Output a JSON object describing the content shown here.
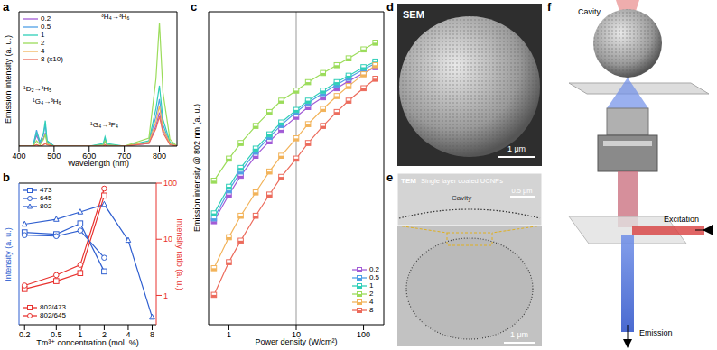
{
  "chart_data": [
    {
      "panel": "a",
      "type": "line",
      "x_label": "Wavelength (nm)",
      "y_label": "Emission intensity (a. u.)",
      "x": [
        400,
        440,
        450,
        460,
        470,
        475,
        480,
        500,
        600,
        640,
        645,
        650,
        700,
        770,
        790,
        800,
        810,
        830,
        850
      ],
      "xlim": [
        400,
        850
      ],
      "xticks": [
        400,
        500,
        600,
        700,
        800
      ],
      "ylim": [
        0,
        10
      ],
      "tick_labels": "x",
      "legend": "upper left",
      "annotations": [
        "³H₄→³H₆",
        "¹D₂→³H₅",
        "¹G₄→³H₆",
        "¹G₄→³F₄"
      ],
      "series": [
        {
          "name": "0.2",
          "color": "#a25bd6",
          "values": [
            0,
            0,
            0.8,
            0.2,
            0.6,
            1.0,
            0.3,
            0,
            0,
            0.1,
            0.3,
            0.1,
            0,
            0.2,
            1.5,
            2.5,
            1.2,
            0.2,
            0
          ]
        },
        {
          "name": "0.5",
          "color": "#4f9fe6",
          "values": [
            0,
            0,
            1.2,
            0.3,
            0.9,
            1.6,
            0.4,
            0,
            0,
            0.1,
            0.5,
            0.1,
            0,
            0.3,
            2.2,
            3.5,
            1.6,
            0.2,
            0
          ]
        },
        {
          "name": "1",
          "color": "#2fcfb8",
          "values": [
            0,
            0,
            1.0,
            0.3,
            1.0,
            1.9,
            0.4,
            0,
            0,
            0.2,
            0.7,
            0.2,
            0,
            0.4,
            2.8,
            4.5,
            2.0,
            0.3,
            0
          ]
        },
        {
          "name": "2",
          "color": "#9bdc5a",
          "values": [
            0,
            0,
            0.4,
            0.1,
            0.5,
            0.9,
            0.2,
            0,
            0,
            0.1,
            0.4,
            0.1,
            0,
            0.6,
            5.0,
            9.2,
            4.0,
            0.5,
            0
          ]
        },
        {
          "name": "4",
          "color": "#f2b35a",
          "values": [
            0,
            0,
            0.1,
            0,
            0.1,
            0.2,
            0.1,
            0,
            0,
            0,
            0.1,
            0,
            0,
            0.3,
            1.8,
            3.0,
            1.3,
            0.2,
            0
          ]
        },
        {
          "name": "8 (x10)",
          "color": "#ec6b5c",
          "values": [
            0,
            0,
            0.1,
            0,
            0.1,
            0.2,
            0.1,
            0,
            0,
            0,
            0.1,
            0,
            0,
            0.2,
            1.3,
            2.2,
            1.0,
            0.1,
            0
          ]
        }
      ]
    },
    {
      "panel": "b",
      "type": "line",
      "log": true,
      "x_label": "Tm³⁺ concentration (mol. %)",
      "y_label": "Intensity (a. u.)",
      "y2_label": "Intensity ratio (a. u.)",
      "x": [
        0.2,
        0.5,
        1,
        2,
        4,
        8
      ],
      "xlim": [
        0.17,
        9
      ],
      "xticks": [
        0.2,
        0.5,
        1,
        2,
        4,
        8
      ],
      "ylim": [
        0.5,
        15
      ],
      "y2lim": [
        0.3,
        100
      ],
      "y2ticks": [
        1,
        10,
        100
      ],
      "legend": "upper left",
      "series": [
        {
          "name": "473",
          "color": "#2f5fd0",
          "marker": "square",
          "values": [
            4.6,
            4.4,
            5.7,
            1.8,
            null,
            null
          ]
        },
        {
          "name": "645",
          "color": "#2f5fd0",
          "marker": "circle",
          "values": [
            4.3,
            4.2,
            4.8,
            2.5,
            null,
            null
          ]
        },
        {
          "name": "802",
          "color": "#2f5fd0",
          "marker": "triangle",
          "values": [
            5.6,
            6.3,
            7.5,
            9,
            3.8,
            0.6
          ]
        },
        {
          "name": "802/473",
          "color": "#e8322f",
          "marker": "square",
          "axis": "y2",
          "values": [
            1.3,
            1.8,
            2.5,
            60,
            null,
            null
          ]
        },
        {
          "name": "802/645",
          "color": "#e8322f",
          "marker": "circle",
          "axis": "y2",
          "values": [
            1.5,
            2.3,
            3.5,
            80,
            null,
            null
          ]
        }
      ]
    },
    {
      "panel": "c",
      "type": "line",
      "log": true,
      "x_label": "Power density (W/cm²)",
      "y_label": "Emission intensity @ 802 nm (a. u.)",
      "x": [
        0.6,
        1,
        1.5,
        2.5,
        4,
        6,
        10,
        15,
        25,
        40,
        60,
        100,
        150
      ],
      "xlim": [
        0.5,
        200
      ],
      "xticks": [
        1,
        10,
        100
      ],
      "ylim": [
        1,
        100000
      ],
      "tick_labels": "x",
      "legend": "lower right",
      "vline": 10,
      "series": [
        {
          "name": "0.2",
          "color": "#a25bd6",
          "marker": "half_square",
          "values": [
            45,
            120,
            240,
            500,
            850,
            1300,
            2100,
            3000,
            4300,
            6000,
            7800,
            10500,
            13000
          ]
        },
        {
          "name": "0.5",
          "color": "#4f9fe6",
          "marker": "half_square",
          "values": [
            50,
            140,
            280,
            580,
            1000,
            1550,
            2500,
            3500,
            5000,
            6800,
            8800,
            12000,
            15000
          ]
        },
        {
          "name": "1",
          "color": "#2fcfb8",
          "marker": "half_square",
          "values": [
            60,
            160,
            320,
            650,
            1100,
            1700,
            2700,
            3800,
            5500,
            7500,
            9500,
            13000,
            16000
          ]
        },
        {
          "name": "2",
          "color": "#9bdc5a",
          "marker": "half_square",
          "values": [
            200,
            450,
            800,
            1500,
            2500,
            3800,
            5500,
            7500,
            10500,
            14000,
            18000,
            25000,
            32000
          ]
        },
        {
          "name": "4",
          "color": "#f2b35a",
          "marker": "half_square",
          "values": [
            8,
            25,
            55,
            130,
            280,
            500,
            950,
            1600,
            2800,
            4500,
            6500,
            10000,
            14000
          ]
        },
        {
          "name": "8",
          "color": "#ec6b5c",
          "marker": "half_square",
          "values": [
            3,
            10,
            22,
            55,
            120,
            230,
            450,
            800,
            1500,
            2500,
            3800,
            6000,
            8500
          ]
        }
      ]
    }
  ],
  "images": [
    {
      "panel": "d",
      "label": "SEM",
      "scale_bar": "1 μm"
    },
    {
      "panel": "e",
      "label": "TEM",
      "caption": "Single layer coated UCNPs",
      "inset_label": "Cavity",
      "inset_scale_bar": "0.5 μm",
      "scale_bar": "1 μm"
    },
    {
      "panel": "f",
      "labels": [
        "Cavity",
        "Excitation",
        "Emission"
      ]
    }
  ]
}
